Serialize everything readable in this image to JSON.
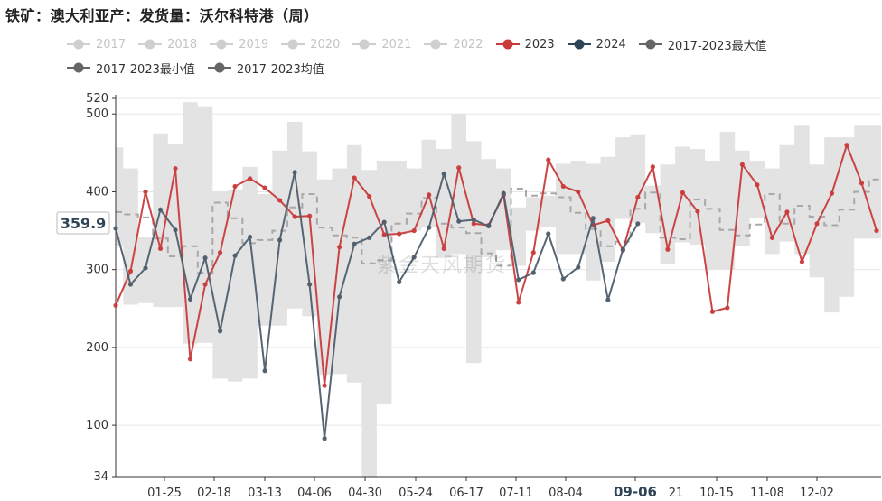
{
  "title": "铁矿：澳大利亚产：发货量：沃尔科特港（周）",
  "watermark": "紫金天风期货",
  "colors": {
    "max_min_band": "#e3e3e3",
    "avg_line": "#a8a8a8",
    "year_2023": "#c93b3b",
    "year_2024": "#4f5e6b",
    "legend_inactive": "#cfcfcf",
    "legend_text_inactive": "#c4c4c4",
    "legend_text": "#333333"
  },
  "legend": [
    {
      "name": "2017",
      "color": "#cfcfcf",
      "inactive": true
    },
    {
      "name": "2018",
      "color": "#cfcfcf",
      "inactive": true
    },
    {
      "name": "2019",
      "color": "#cfcfcf",
      "inactive": true
    },
    {
      "name": "2020",
      "color": "#cfcfcf",
      "inactive": true
    },
    {
      "name": "2021",
      "color": "#cfcfcf",
      "inactive": true
    },
    {
      "name": "2022",
      "color": "#cfcfcf",
      "inactive": true
    },
    {
      "name": "2023",
      "color": "#c93b3b",
      "inactive": false
    },
    {
      "name": "2024",
      "color": "#2f4456",
      "inactive": false
    },
    {
      "name": "2017-2023最大值",
      "color": "#666666",
      "inactive": false
    },
    {
      "name": "2017-2023最小值",
      "color": "#666666",
      "inactive": false
    },
    {
      "name": "2017-2023均值",
      "color": "#666666",
      "inactive": false
    }
  ],
  "chart_data": {
    "type": "line",
    "ylim": [
      34,
      520
    ],
    "y_ticks": [
      34,
      100,
      200,
      300,
      400,
      500,
      520
    ],
    "x_ticks": [
      "01-25",
      "02-18",
      "03-13",
      "04-06",
      "04-30",
      "05-24",
      "06-17",
      "07-11",
      "08-04",
      "09-06",
      "10-15",
      "11-08",
      "12-02"
    ],
    "x_tick_partial": "21",
    "pointer_label_y": "359.9",
    "pointer_label_x": "09-06",
    "series": [
      {
        "name": "2023",
        "values": [
          254,
          298,
          400,
          327,
          430,
          185,
          281,
          322,
          407,
          417,
          405,
          389,
          368,
          369,
          151,
          329,
          418,
          394,
          345,
          346,
          350,
          396,
          327,
          431,
          359,
          357,
          396,
          258,
          322,
          441,
          407,
          400,
          357,
          363,
          325,
          393,
          432,
          326,
          399,
          375,
          246,
          251,
          435,
          409,
          341,
          374,
          310,
          359,
          398,
          460,
          411,
          350
        ]
      },
      {
        "name": "2024",
        "values": [
          353,
          281,
          302,
          377,
          351,
          262,
          315,
          221,
          318,
          342,
          170,
          338,
          425,
          281,
          83,
          265,
          333,
          341,
          361,
          284,
          316,
          354,
          423,
          362,
          364,
          356,
          398,
          287,
          296,
          346,
          288,
          303,
          366,
          261,
          326,
          359
        ]
      },
      {
        "name": "2017-2023最大值",
        "values": [
          457,
          430,
          342,
          475,
          462,
          515,
          510,
          400,
          403,
          432,
          397,
          453,
          490,
          452,
          416,
          430,
          460,
          428,
          440,
          440,
          430,
          467,
          455,
          500,
          465,
          442,
          430,
          380,
          393,
          395,
          436,
          440,
          436,
          445,
          470,
          474,
          408,
          435,
          458,
          455,
          440,
          477,
          453,
          440,
          430,
          460,
          485,
          435,
          470,
          470,
          485,
          485
        ]
      },
      {
        "name": "2017-2023最小值",
        "values": [
          330,
          255,
          257,
          252,
          252,
          205,
          206,
          160,
          156,
          160,
          228,
          228,
          250,
          240,
          165,
          166,
          155,
          34,
          128,
          345,
          350,
          355,
          315,
          320,
          180,
          316,
          325,
          305,
          350,
          355,
          320,
          320,
          286,
          310,
          365,
          360,
          347,
          307,
          335,
          332,
          300,
          300,
          330,
          366,
          320,
          336,
          320,
          290,
          245,
          265,
          340,
          340
        ]
      },
      {
        "name": "2017-2023均值",
        "values": [
          374,
          371,
          367,
          340,
          317,
          330,
          296,
          386,
          366,
          334,
          338,
          350,
          380,
          397,
          354,
          344,
          341,
          308,
          312,
          359,
          372,
          392,
          359,
          354,
          347,
          321,
          305,
          404,
          395,
          398,
          393,
          373,
          352,
          330,
          336,
          378,
          399,
          341,
          339,
          390,
          378,
          351,
          344,
          358,
          397,
          359,
          382,
          368,
          357,
          377,
          400,
          416
        ]
      }
    ]
  }
}
